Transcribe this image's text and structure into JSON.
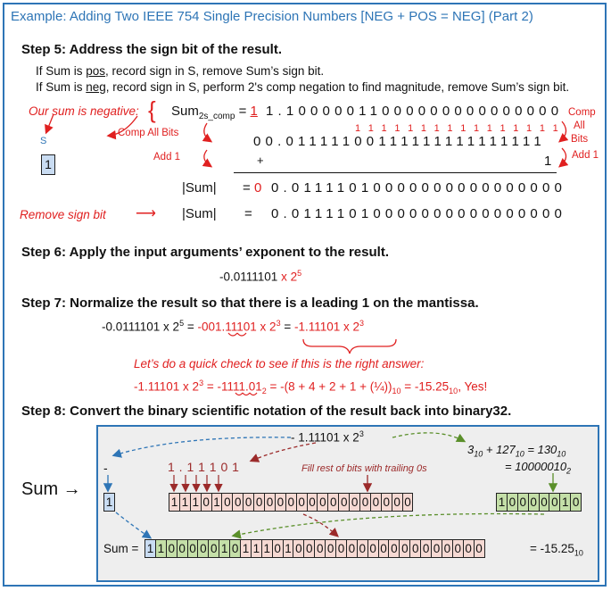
{
  "title": "Example: Adding Two IEEE 754 Single Precision Numbers [NEG + POS = NEG] (Part 2)",
  "step5": {
    "heading": "Step 5: Address the sign bit of the result.",
    "line1_a": "If Sum is ",
    "line1_u": "pos",
    "line1_b": ", record sign in S, remove Sum’s sign bit.",
    "line2_a": "If Sum is ",
    "line2_u": "neg",
    "line2_b": ", record sign in S, perform 2's comp negation to find magnitude, remove Sum’s sign bit.",
    "our_sum_negative": "Our sum is negative:",
    "s_label": "S",
    "s_value": "1",
    "sum_label": "Sum",
    "sum_sub": "2s_comp",
    "sum_eq": " = ",
    "sum_sign": "1",
    "sum_bits": "1.10000011000000000000000",
    "comp_all_bits": "Comp All Bits",
    "comp_right_1": "Comp",
    "comp_right_2": "All",
    "comp_right_3": "Bits",
    "carry_row": "1 1 1 1 1 1 1 1 1 1 1 1 1 1 1 1",
    "comp_row": "00.01111100111111111111111",
    "add1_left": "Add 1",
    "add1_right": "Add 1",
    "plus": "+",
    "one": "1",
    "abs_label": "|Sum|",
    "abs_eq": "= ",
    "abs_sign": "0",
    "abs_bits": "0.01111010000000000000000",
    "remove_sign": "Remove sign bit",
    "abs2_eq": "=",
    "abs2_bits": "0.01111010000000000000000"
  },
  "step6": {
    "heading": "Step 6: Apply the input arguments’ exponent to the result.",
    "expr_a": "-0.0111101 ",
    "expr_b": "x 2",
    "expr_sup": "5"
  },
  "step7": {
    "heading": "Step 7: Normalize the result so that there is a leading 1 on the mantissa.",
    "expr1": "-0.0111101 x 2",
    "expr1_sup": "5",
    "expr1_eq": " = ",
    "expr2": "-001.11101 x 2",
    "expr2_sup": "3",
    "expr2_eq": " = ",
    "expr3": "-1.11101 x 2",
    "expr3_sup": "3",
    "check": "Let’s do a quick check to see if this is the right answer:",
    "chk1": "-1.11101 x 2",
    "chk1_sup": "3",
    "chk2": " = -1111.01",
    "chk2_sub": "2",
    "chk3": " = -(8 + 4 + 2 + 1 + (¼))",
    "chk3_sub": "10",
    "chk4": " = -15.25",
    "chk4_sub": "10",
    "chk5": ", Yes!"
  },
  "step8": {
    "heading": "Step 8: Convert the binary scientific notation of the result back into binary32.",
    "sci": "- 1.11101 x 2",
    "sci_sup": "3",
    "exp_calc_a": "3",
    "exp_calc_a_sub": "10",
    "exp_calc_b": " + 127",
    "exp_calc_b_sub": "10",
    "exp_calc_c": " = 130",
    "exp_calc_c_sub": "10",
    "exp_bin": "= 10000010",
    "exp_bin_sub": "2",
    "minus": "-",
    "mant_digits": "1 .  1  1  1  0  1",
    "fill_note": "Fill rest of bits with trailing 0s",
    "sum_arrow": "Sum →",
    "sign_cell": "1",
    "mantissa_cells": [
      "1",
      "1",
      "1",
      "0",
      "1",
      "0",
      "0",
      "0",
      "0",
      "0",
      "0",
      "0",
      "0",
      "0",
      "0",
      "0",
      "0",
      "0",
      "0",
      "0",
      "0",
      "0",
      "0"
    ],
    "exponent_cells": [
      "1",
      "0",
      "0",
      "0",
      "0",
      "0",
      "1",
      "0"
    ],
    "final_label": "Sum =",
    "final_sign": [
      "1"
    ],
    "final_exp": [
      "1",
      "0",
      "0",
      "0",
      "0",
      "0",
      "1",
      "0"
    ],
    "final_mant": [
      "1",
      "1",
      "1",
      "0",
      "1",
      "0",
      "0",
      "0",
      "0",
      "0",
      "0",
      "0",
      "0",
      "0",
      "0",
      "0",
      "0",
      "0",
      "0",
      "0",
      "0",
      "0",
      "0"
    ],
    "final_value": "= -15.25",
    "final_value_sub": "10"
  },
  "colors": {
    "blue": "#2e75b6",
    "red": "#e02020",
    "sign": "#c9dcf2",
    "exponent": "#c4dfa8",
    "mantissa": "#f6d9d3",
    "green_arrow": "#5a8f2a",
    "dark_red_arrow": "#9b2a2a"
  }
}
